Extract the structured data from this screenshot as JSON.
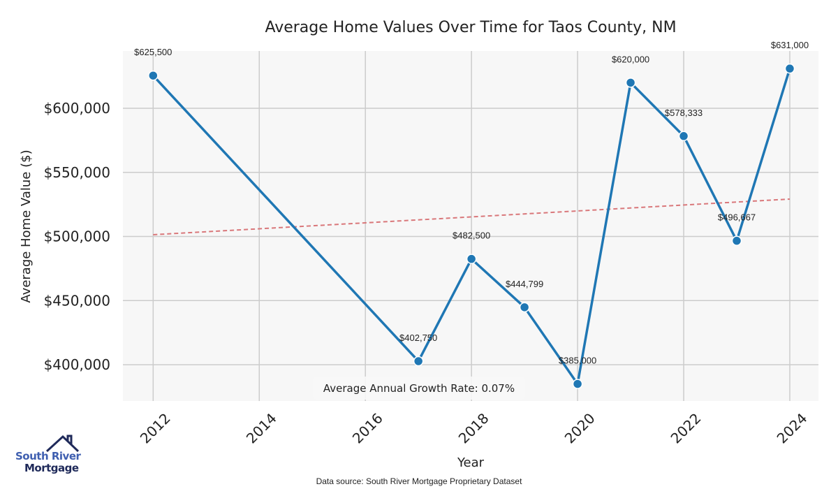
{
  "chart_data": {
    "type": "line",
    "title": "Average Home Values Over Time for Taos County, NM",
    "xlabel": "Year",
    "ylabel": "Average Home Value ($)",
    "xlim": [
      2011.43,
      2024.54
    ],
    "ylim": [
      371700,
      644700
    ],
    "grid": true,
    "x_ticks": [
      2012,
      2014,
      2016,
      2018,
      2020,
      2022,
      2024
    ],
    "y_ticks": [
      400000,
      450000,
      500000,
      550000,
      600000
    ],
    "y_tick_labels": [
      "$400,000",
      "$450,000",
      "$500,000",
      "$550,000",
      "$600,000"
    ],
    "series": [
      {
        "name": "Average Home Value",
        "color": "#1f77b4",
        "x": [
          2012,
          2017,
          2018,
          2019,
          2020,
          2021,
          2022,
          2023,
          2024
        ],
        "values": [
          625500,
          402750,
          482500,
          444799,
          385000,
          620000,
          578333,
          496667,
          631000
        ],
        "labels": [
          "$625,500",
          "$402,750",
          "$482,500",
          "$444,799",
          "$385,000",
          "$620,000",
          "$578,333",
          "$496,667",
          "$631,000"
        ]
      }
    ],
    "trendline": {
      "color": "#d9777a",
      "x": [
        2012,
        2024
      ],
      "values": [
        501400,
        529200
      ]
    },
    "annotation": "Average Annual Growth Rate: 0.07%",
    "source": "Data source: South River Mortgage Proprietary Dataset"
  },
  "logo": {
    "line1": "South River",
    "line2": "Mortgage"
  }
}
